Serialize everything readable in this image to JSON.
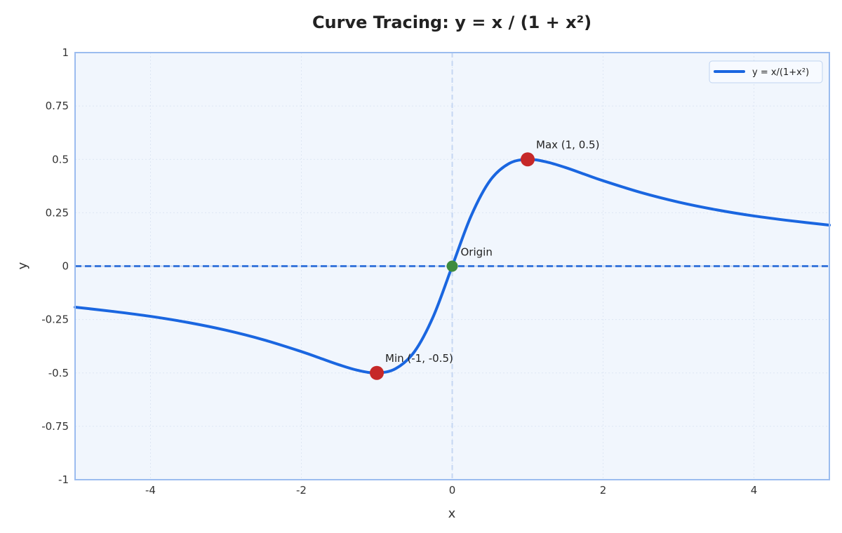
{
  "chart_data": {
    "type": "line",
    "title": "Curve Tracing: y = x / (1 + x²)",
    "xlabel": "x",
    "ylabel": "y",
    "xlim": [
      -5,
      5
    ],
    "ylim": [
      -1,
      1
    ],
    "x_ticks": [
      -4,
      -2,
      0,
      2,
      4
    ],
    "x_tick_labels": [
      "-4",
      "-2",
      "0",
      "2",
      "4"
    ],
    "y_ticks": [
      -1,
      -0.75,
      -0.5,
      -0.25,
      0,
      0.25,
      0.5,
      0.75,
      1
    ],
    "y_tick_labels": [
      "-1",
      "-0.75",
      "-0.5",
      "-0.25",
      "0",
      "0.25",
      "0.5",
      "0.75",
      "1"
    ],
    "grid": true,
    "legend_position": "top-right",
    "series": [
      {
        "name": "y = x/(1+x²)",
        "color": "#1a66e0",
        "x": [
          -5,
          -4.5,
          -4,
          -3.5,
          -3,
          -2.5,
          -2,
          -1.75,
          -1.5,
          -1.25,
          -1,
          -0.75,
          -0.5,
          -0.25,
          0,
          0.25,
          0.5,
          0.75,
          1,
          1.25,
          1.5,
          1.75,
          2,
          2.5,
          3,
          3.5,
          4,
          4.5,
          5
        ],
        "y": [
          -0.192,
          -0.212,
          -0.235,
          -0.264,
          -0.3,
          -0.345,
          -0.4,
          -0.431,
          -0.462,
          -0.488,
          -0.5,
          -0.48,
          -0.4,
          -0.235,
          0,
          0.235,
          0.4,
          0.48,
          0.5,
          0.488,
          0.462,
          0.431,
          0.4,
          0.345,
          0.3,
          0.264,
          0.235,
          0.212,
          0.192
        ]
      }
    ],
    "asymptote": {
      "y": 0,
      "color": "#3b78dc"
    },
    "points": [
      {
        "x": 1,
        "y": 0.5,
        "label": "Max (1, 0.5)",
        "color": "#c62828"
      },
      {
        "x": -1,
        "y": -0.5,
        "label": "Min (-1, -0.5)",
        "color": "#c62828"
      },
      {
        "x": 0,
        "y": 0,
        "label": "Origin",
        "color": "#3d8b3d"
      }
    ],
    "colors": {
      "plot_background": "#f1f6fd",
      "frame": "#9bbcef",
      "zero_axis": "#c5d7f2"
    }
  }
}
